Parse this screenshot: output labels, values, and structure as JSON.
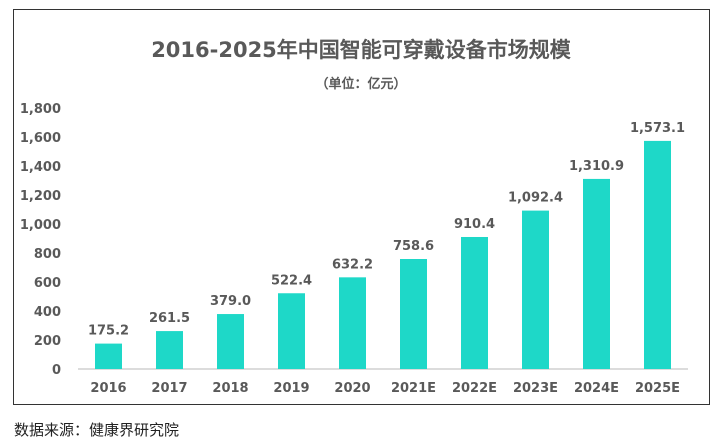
{
  "chart_data": {
    "type": "bar",
    "title": "2016-2025年中国智能可穿戴设备市场规模",
    "subtitle": "（单位：亿元）",
    "categories": [
      "2016",
      "2017",
      "2018",
      "2019",
      "2020",
      "2021E",
      "2022E",
      "2023E",
      "2024E",
      "2025E"
    ],
    "values": [
      175.2,
      261.5,
      379.0,
      522.4,
      632.2,
      758.6,
      910.4,
      1092.4,
      1310.9,
      1573.1
    ],
    "data_labels": [
      "175.2",
      "261.5",
      "379.0",
      "522.4",
      "632.2",
      "758.6",
      "910.4",
      "1,092.4",
      "1,310.9",
      "1,573.1"
    ],
    "ylim": [
      0,
      1800
    ],
    "yticks": [
      "0",
      "200",
      "400",
      "600",
      "800",
      "1,000",
      "1,200",
      "1,400",
      "1,600",
      "1,800"
    ],
    "grid": false,
    "bar_color": "#1ED8C8",
    "xlabel": "",
    "ylabel": ""
  },
  "source": "数据来源：健康界研究院"
}
